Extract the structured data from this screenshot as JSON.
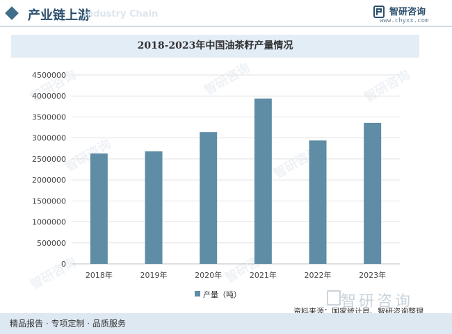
{
  "header": {
    "section_title": "产业链上游",
    "watermark": "Industry Chain",
    "logo_name": "智研咨询",
    "logo_url": "www.chyxx.com"
  },
  "chart_data": {
    "type": "bar",
    "title": "2018-2023年中国油茶籽产量情况",
    "categories": [
      "2018年",
      "2019年",
      "2020年",
      "2021年",
      "2022年",
      "2023年"
    ],
    "series": [
      {
        "name": "产量（吨）",
        "values": [
          2630000,
          2680000,
          3140000,
          3940000,
          2940000,
          3360000
        ]
      }
    ],
    "yticks": [
      0,
      500000,
      1000000,
      1500000,
      2000000,
      2500000,
      3000000,
      3500000,
      4000000,
      4500000
    ],
    "ylim": [
      0,
      4500000
    ],
    "xlabel": "",
    "ylabel": "",
    "grid": true,
    "legend_position": "bottom-center",
    "bar_color": "#5e8da5"
  },
  "source": "资料来源：国家统计局、智研咨询整理",
  "source_logo": "智研咨询",
  "footer": "精品报告 · 专项定制 · 品质服务"
}
